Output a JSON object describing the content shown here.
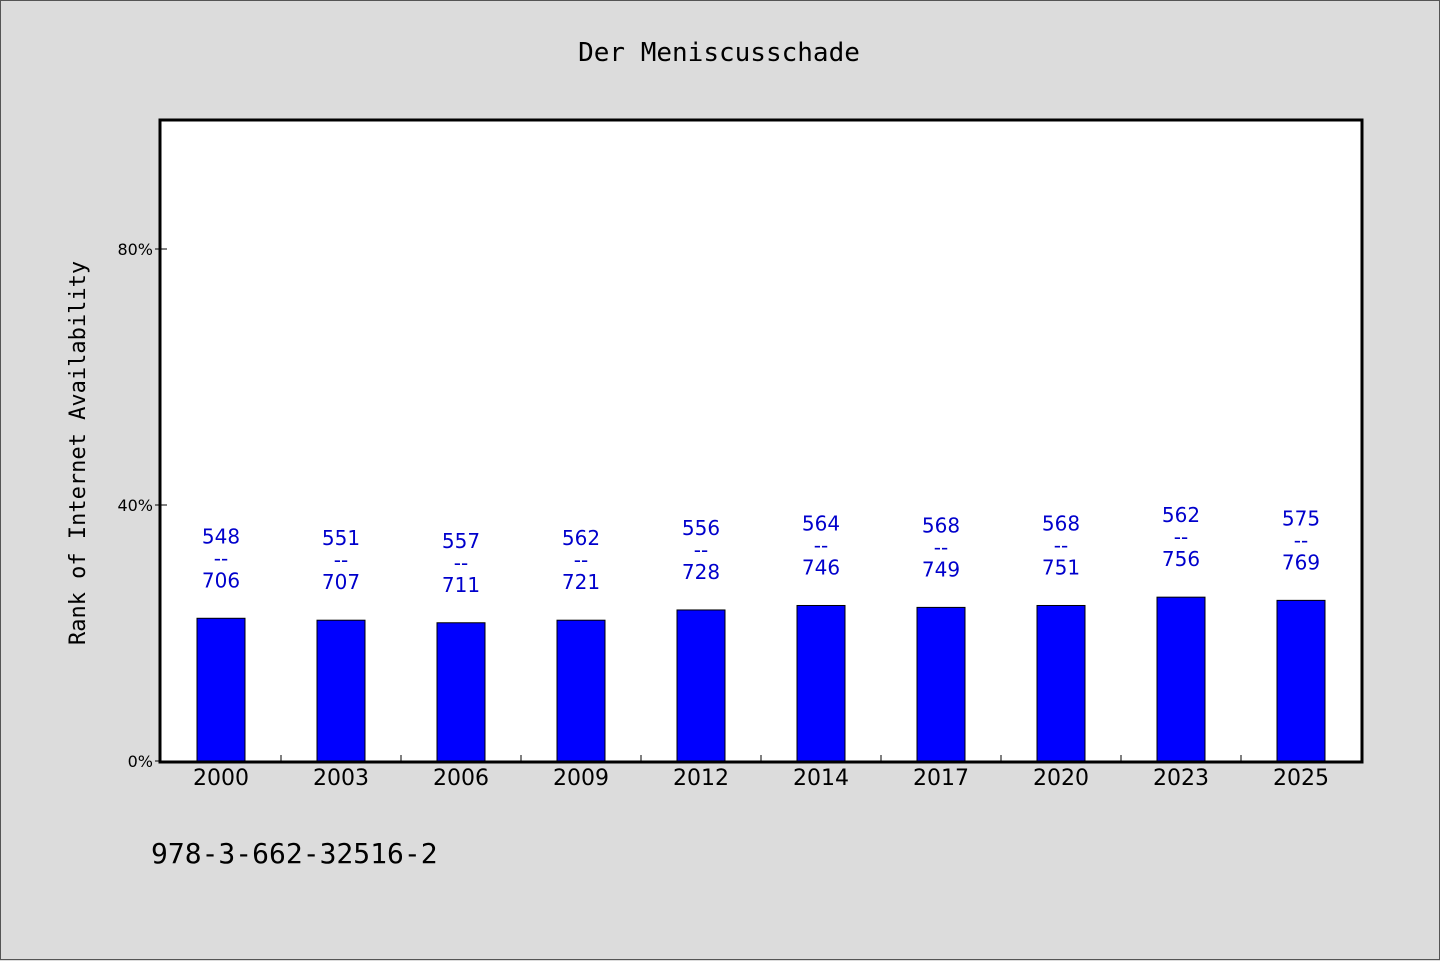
{
  "chart_data": {
    "type": "bar",
    "title": "Der Meniscusschade",
    "xlabel": "",
    "ylabel": "Rank of Internet Availability",
    "categories": [
      "2000",
      "2003",
      "2006",
      "2009",
      "2012",
      "2014",
      "2017",
      "2020",
      "2023",
      "2025"
    ],
    "series": [
      {
        "values": [
          22.3,
          22.0,
          21.6,
          22.0,
          23.6,
          24.3,
          24.0,
          24.3,
          25.6,
          25.1
        ],
        "labels": [
          [
            "548",
            "--",
            "706"
          ],
          [
            "551",
            "--",
            "707"
          ],
          [
            "557",
            "--",
            "711"
          ],
          [
            "562",
            "--",
            "721"
          ],
          [
            "556",
            "--",
            "728"
          ],
          [
            "564",
            "--",
            "746"
          ],
          [
            "568",
            "--",
            "749"
          ],
          [
            "568",
            "--",
            "751"
          ],
          [
            "562",
            "--",
            "756"
          ],
          [
            "575",
            "--",
            "769"
          ]
        ]
      }
    ],
    "yticks": [
      0,
      40,
      80
    ],
    "ytick_labels": [
      "0%",
      "40%",
      "80%"
    ],
    "ylim": [
      0,
      100
    ],
    "grid": false,
    "legend": "none",
    "colors": {
      "bar": "#0000ff",
      "label": "#0000cc",
      "background": "#dcdcdc",
      "plot_area": "#ffffff"
    }
  },
  "footer": {
    "isbn": "978-3-662-32516-2"
  }
}
